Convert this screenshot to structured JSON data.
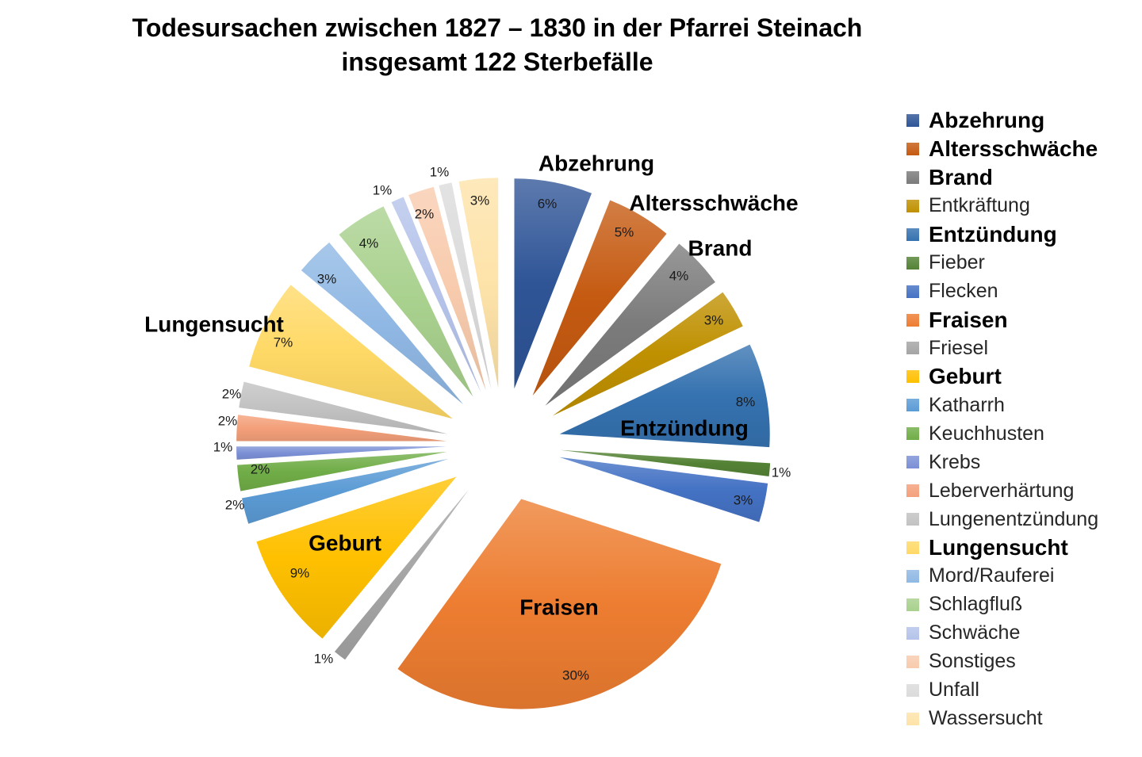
{
  "chart_data": {
    "type": "pie",
    "exploded": true,
    "title": "Todesursachen zwischen 1827 – 1830 in der Pfarrei Steinach",
    "subtitle": "insgesamt 122 Sterbefälle",
    "legend_position": "right",
    "categories": [
      "Abzehrung",
      "Altersschwäche",
      "Brand",
      "Entkräftung",
      "Entzündung",
      "Fieber",
      "Flecken",
      "Fraisen",
      "Friesel",
      "Geburt",
      "Katharrh",
      "Keuchhusten",
      "Krebs",
      "Leberverhärtung",
      "Lungenentzündung",
      "Lungensucht",
      "Mord/Rauferei",
      "Schlagfluß",
      "Schwäche",
      "Sonstiges",
      "Unfall",
      "Wassersucht"
    ],
    "values": [
      6,
      5,
      4,
      3,
      8,
      1,
      3,
      30,
      1,
      9,
      2,
      2,
      1,
      2,
      2,
      7,
      3,
      4,
      1,
      2,
      1,
      3
    ],
    "data_labels": [
      "6%",
      "5%",
      "4%",
      "3%",
      "8%",
      "1%",
      "3%",
      "30%",
      "1%",
      "9%",
      "2%",
      "2%",
      "1%",
      "2%",
      "2%",
      "7%",
      "3%",
      "4%",
      "1%",
      "2%",
      "1%",
      "3%"
    ],
    "slice_name_labels": [
      "Abzehrung",
      "Altersschwäche",
      "Brand",
      null,
      "Entzündung",
      null,
      null,
      "Fraisen",
      null,
      "Geburt",
      null,
      null,
      null,
      null,
      null,
      "Lungensucht",
      null,
      null,
      null,
      null,
      null,
      null
    ],
    "colors": [
      "#2f5597",
      "#c55a11",
      "#7b7b7b",
      "#bf9000",
      "#3572b0",
      "#548235",
      "#4472c4",
      "#ed7d31",
      "#a5a5a5",
      "#ffc000",
      "#5b9bd5",
      "#70ad47",
      "#7b90d6",
      "#f4a07a",
      "#c2c2c2",
      "#ffd966",
      "#90b8e4",
      "#a9d18e",
      "#b5c3ea",
      "#f8cbad",
      "#dbdbdb",
      "#fee3a9"
    ]
  }
}
